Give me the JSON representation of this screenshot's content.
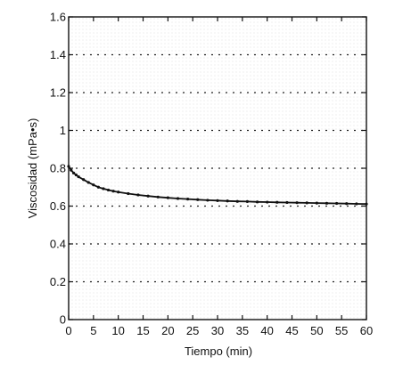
{
  "chart_data": {
    "type": "line",
    "xlabel": "Tiempo (min)",
    "ylabel": "Viscosidad (mPa•s)",
    "xlim": [
      0,
      60
    ],
    "ylim": [
      0,
      1.6
    ],
    "x_ticks": [
      0,
      5,
      10,
      15,
      20,
      25,
      30,
      35,
      40,
      45,
      50,
      55,
      60
    ],
    "x_tick_labels": [
      "0",
      "5",
      "10",
      "15",
      "20",
      "25",
      "30",
      "35",
      "40",
      "45",
      "50",
      "55",
      "60"
    ],
    "y_ticks": [
      0,
      0.2,
      0.4,
      0.6,
      0.8,
      1,
      1.2,
      1.4,
      1.6
    ],
    "y_tick_labels": [
      "0",
      "0.2",
      "0.4",
      "0.6",
      "0.8",
      "1",
      "1.2",
      "1.4",
      "1.6"
    ],
    "grid": "horizontal-dotted",
    "legend": "none",
    "series": [
      {
        "line_color": "#111111",
        "marker": "dot",
        "x": [
          0,
          0.5,
          1,
          1.5,
          2,
          3,
          4,
          5,
          6,
          7,
          8,
          9,
          10,
          12,
          14,
          16,
          18,
          20,
          22,
          24,
          26,
          28,
          30,
          32,
          34,
          36,
          38,
          40,
          42,
          44,
          46,
          48,
          50,
          52,
          54,
          56,
          58,
          60
        ],
        "y": [
          0.81,
          0.79,
          0.775,
          0.765,
          0.755,
          0.74,
          0.725,
          0.712,
          0.7,
          0.692,
          0.685,
          0.679,
          0.674,
          0.666,
          0.659,
          0.653,
          0.648,
          0.644,
          0.64,
          0.637,
          0.634,
          0.631,
          0.629,
          0.627,
          0.625,
          0.624,
          0.622,
          0.621,
          0.62,
          0.619,
          0.618,
          0.617,
          0.616,
          0.615,
          0.614,
          0.613,
          0.612,
          0.611
        ]
      }
    ]
  }
}
